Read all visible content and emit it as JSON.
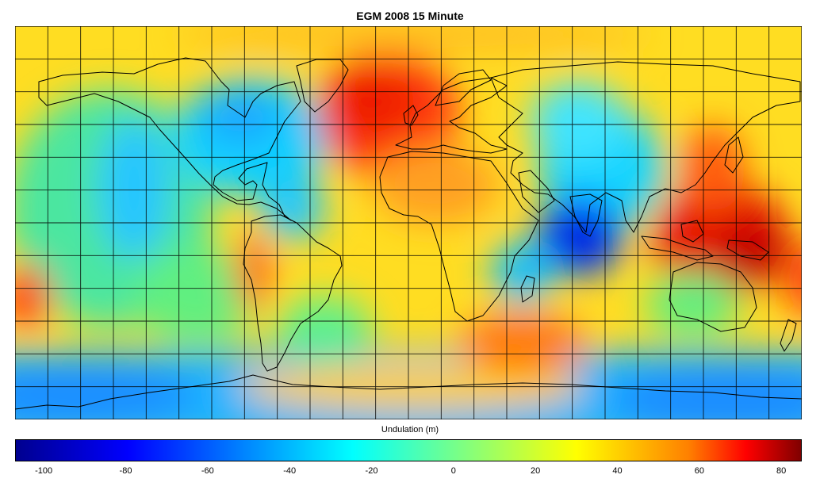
{
  "title": "EGM 2008 15 Minute",
  "colorbar": {
    "label": "Undulation (m)",
    "range": [
      -107,
      85
    ],
    "ticks": [
      "-100",
      "-80",
      "-60",
      "-40",
      "-20",
      "0",
      "20",
      "40",
      "60",
      "80"
    ],
    "colors": [
      "#00008f",
      "#0000ff",
      "#0080ff",
      "#00ffff",
      "#80ff80",
      "#ffff00",
      "#ff8000",
      "#ff0000",
      "#800000"
    ]
  },
  "map": {
    "projection": "equirectangular",
    "graticule_spacing_deg": 15,
    "coastline_color": "#000000"
  }
}
